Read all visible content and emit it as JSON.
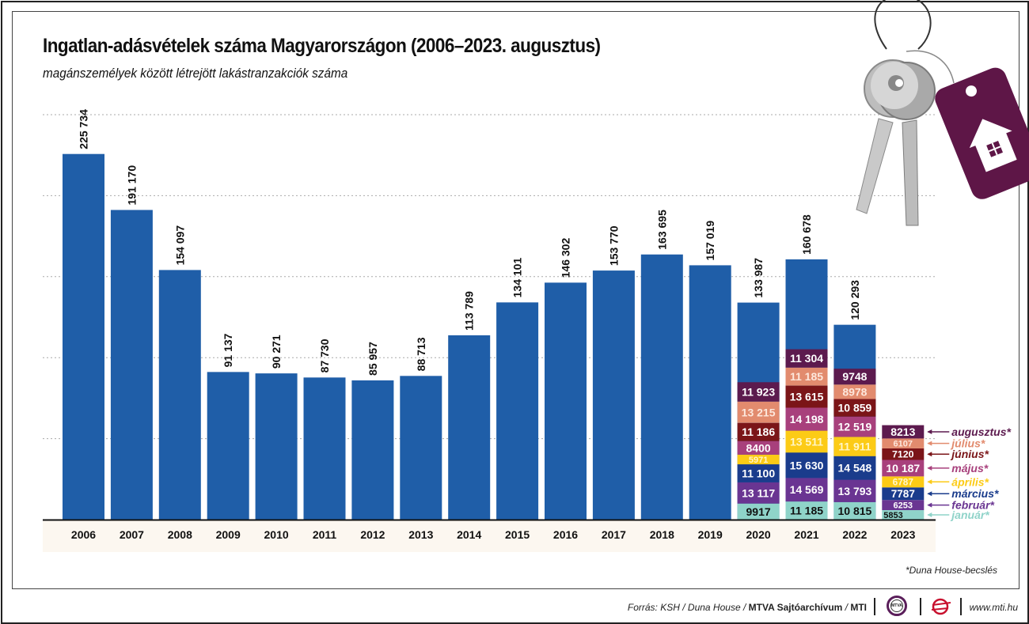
{
  "title": "Ingatlan-adásvételek száma Magyarországon (2006–2023. augusztus)",
  "subtitle": "magánszemélyek között létrejött lakástranzakciók száma",
  "footnote": "*Duna House-becslés",
  "footer": {
    "source_prefix": "Forrás: KSH / Duna House / ",
    "source_bold": "MTVA Sajtóarchívum",
    "source_mid": " / ",
    "source_bold2": "MTI",
    "mtva_logo_text": "MTVA",
    "website": "www.mti.hu"
  },
  "colors": {
    "annual_bar": "#1f5ea8",
    "axis_band": "#fcf7f0",
    "months": [
      "#8fd3c9",
      "#6a3592",
      "#1a3c8c",
      "#fccb16",
      "#a8407c",
      "#7b1518",
      "#e28b6e",
      "#5c1a4e"
    ],
    "month_label_colors": [
      "#8fd3c9",
      "#6a3592",
      "#1a3c8c",
      "#fccb16",
      "#a8407c",
      "#7b1518",
      "#e28b6e",
      "#5c1a4e"
    ],
    "keytag": "#5e1647"
  },
  "chart_data": {
    "type": "bar",
    "title": "Ingatlan-adásvételek száma Magyarországon (2006–2023. augusztus)",
    "xlabel": "",
    "ylabel": "",
    "ylim": [
      0,
      250000
    ],
    "grid": true,
    "gridlines": [
      50000,
      100000,
      150000,
      200000,
      250000
    ],
    "categories": [
      "2006",
      "2007",
      "2008",
      "2009",
      "2010",
      "2011",
      "2012",
      "2013",
      "2014",
      "2015",
      "2016",
      "2017",
      "2018",
      "2019",
      "2020",
      "2021",
      "2022",
      "2023"
    ],
    "annual_values": [
      225734,
      191170,
      154097,
      91137,
      90271,
      87730,
      85957,
      88713,
      113789,
      134101,
      146302,
      153770,
      163695,
      157019,
      133987,
      160678,
      120293,
      null
    ],
    "annual_labels": [
      "225 734",
      "191 170",
      "154 097",
      "91 137",
      "90 271",
      "87 730",
      "85 957",
      "88 713",
      "113 789",
      "134 101",
      "146 302",
      "153 770",
      "163 695",
      "157 019",
      "133 987",
      "160 678",
      "120 293",
      ""
    ],
    "monthly_series_names": [
      "január*",
      "február*",
      "március*",
      "április*",
      "május*",
      "június*",
      "július*",
      "augusztus*"
    ],
    "monthly": [
      {
        "year": "2020",
        "values": [
          9917,
          13117,
          11100,
          5971,
          8400,
          11186,
          13215,
          11923
        ],
        "labels": [
          "9917",
          "13 117",
          "11 100",
          "5971",
          "8400",
          "11 186",
          "13 215",
          "11 923"
        ]
      },
      {
        "year": "2021",
        "values": [
          11185,
          14569,
          15630,
          13511,
          14198,
          13615,
          11185,
          11304
        ],
        "labels": [
          "11 185",
          "14 569",
          "15 630",
          "13 511",
          "14 198",
          "13 615",
          "11 185",
          "11 304"
        ]
      },
      {
        "year": "2022",
        "values": [
          10815,
          13793,
          14548,
          11911,
          12519,
          10859,
          8978,
          9748
        ],
        "labels": [
          "10 815",
          "13 793",
          "14 548",
          "11 911",
          "12 519",
          "10 859",
          "8978",
          "9748"
        ]
      },
      {
        "year": "2023",
        "values": [
          5853,
          6253,
          7787,
          6787,
          10187,
          7120,
          6107,
          8213
        ],
        "labels": [
          "5853",
          "6253",
          "7787",
          "6787",
          "10 187",
          "7120",
          "6107",
          "8213"
        ]
      }
    ]
  }
}
